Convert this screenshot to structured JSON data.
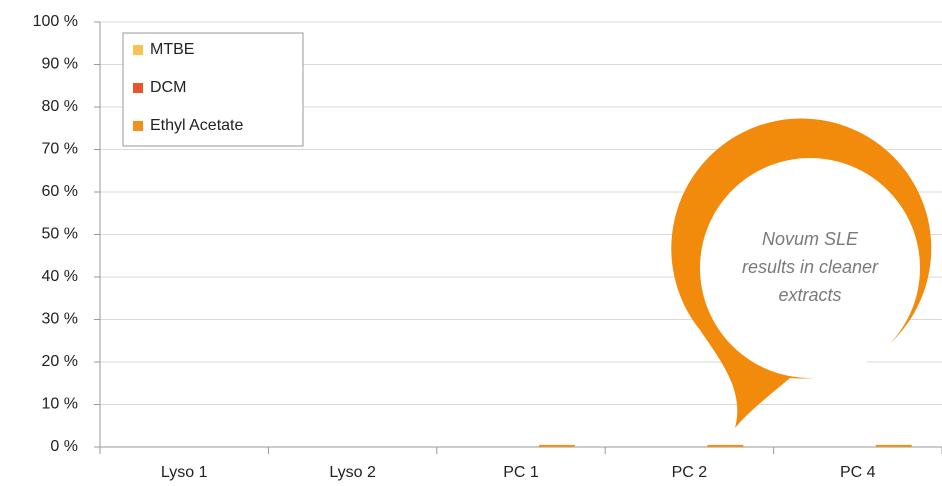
{
  "chart_data": {
    "type": "bar",
    "categories": [
      "Lyso 1",
      "Lyso 2",
      "PC 1",
      "PC 2",
      "PC 4"
    ],
    "series": [
      {
        "name": "MTBE",
        "color": "#f6c44f",
        "values": [
          0,
          0,
          0,
          0,
          0
        ]
      },
      {
        "name": "DCM",
        "color": "#e8552a",
        "values": [
          0,
          0,
          0,
          0,
          0
        ]
      },
      {
        "name": "Ethyl Acetate",
        "color": "#f0901e",
        "values": [
          0,
          0,
          0.5,
          0.5,
          0.5
        ]
      }
    ],
    "ylim": [
      0,
      100
    ],
    "yticks": [
      {
        "value": 0,
        "label": "0 %"
      },
      {
        "value": 10,
        "label": "10 %"
      },
      {
        "value": 20,
        "label": "20 %"
      },
      {
        "value": 30,
        "label": "30 %"
      },
      {
        "value": 40,
        "label": "40 %"
      },
      {
        "value": 50,
        "label": "50 %"
      },
      {
        "value": 60,
        "label": "60 %"
      },
      {
        "value": 70,
        "label": "70 %"
      },
      {
        "value": 80,
        "label": "80 %"
      },
      {
        "value": 90,
        "label": "90 %"
      },
      {
        "value": 100,
        "label": "100 %"
      }
    ],
    "grid": true,
    "legend": "upper left",
    "annotation": [
      "Novum SLE",
      "results in cleaner",
      "extracts"
    ],
    "annotation_color": "#f28a0c"
  }
}
